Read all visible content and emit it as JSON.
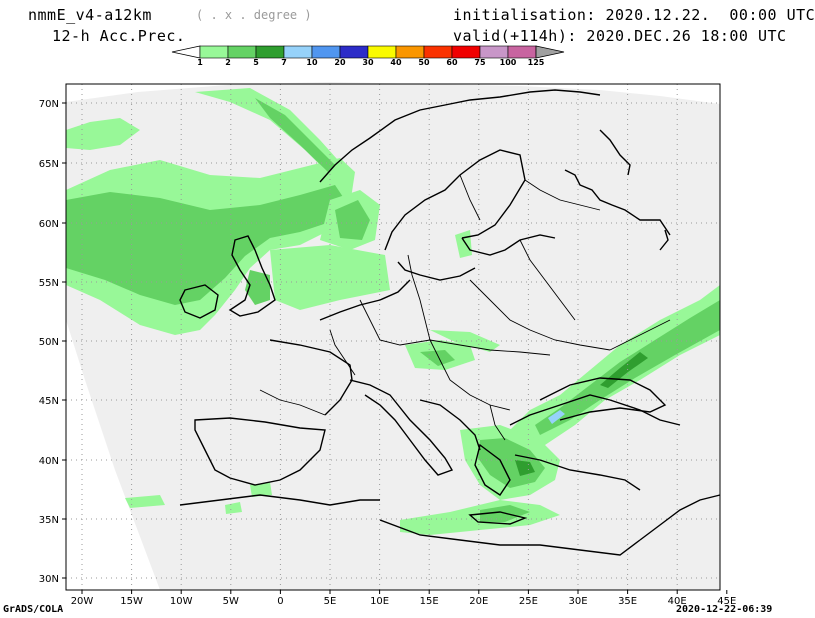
{
  "header": {
    "model": "nmmE_v4-a12km",
    "units": "( . x . degree )",
    "field": "12-h Acc.Prec.",
    "initialisation": "initialisation: 2020.12.22.  00:00 UTC",
    "valid": "valid(+114h): 2020.DEC.26 18:00 UTC"
  },
  "colorbar": {
    "levels": [
      "1",
      "2",
      "5",
      "7",
      "10",
      "20",
      "30",
      "40",
      "50",
      "60",
      "75",
      "100",
      "125"
    ],
    "colors": [
      "#98f898",
      "#64d264",
      "#2f9e2f",
      "#96d2fa",
      "#5096f0",
      "#2c2cc8",
      "#fafa00",
      "#fa9600",
      "#fa3200",
      "#f00000",
      "#c896c8",
      "#c864a0",
      "#9600b4",
      "#a0a0a0"
    ]
  },
  "map": {
    "lat_labels": [
      "70N",
      "65N",
      "60N",
      "55N",
      "50N",
      "45N",
      "40N",
      "35N",
      "30N"
    ],
    "lon_labels": [
      "20W",
      "15W",
      "10W",
      "5W",
      "0",
      "5E",
      "10E",
      "15E",
      "20E",
      "25E",
      "30E",
      "35E",
      "40E",
      "45E"
    ]
  },
  "footer": {
    "left": "GrADS/COLA",
    "right": "2020-12-22-06:39"
  }
}
